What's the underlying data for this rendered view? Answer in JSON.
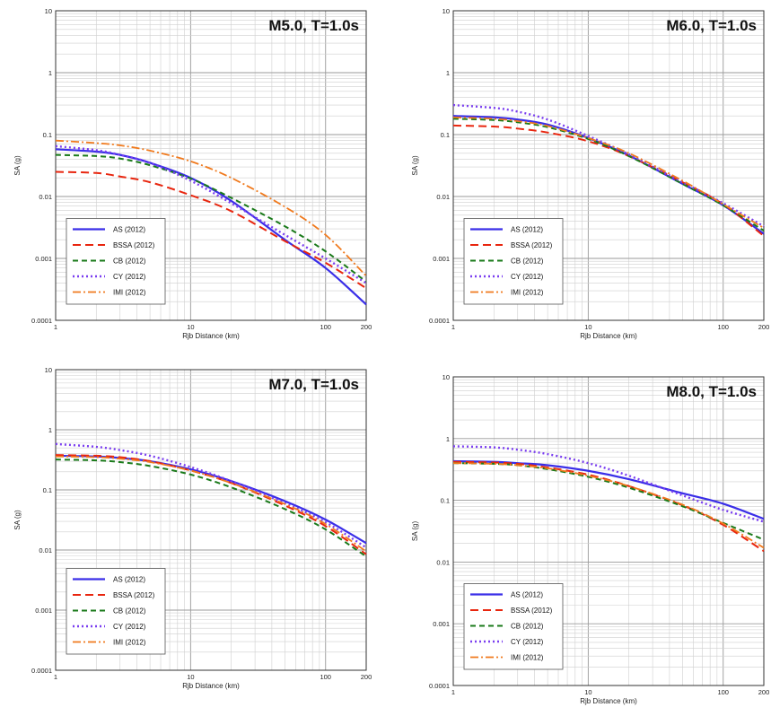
{
  "figure": {
    "background": "#ffffff"
  },
  "series_styles": {
    "AS (2012)": {
      "color": "#3a2ee8",
      "dash": "",
      "width": 2.2
    },
    "BSSA (2012)": {
      "color": "#e8260f",
      "dash": "9,5",
      "width": 2.0
    },
    "CB (2012)": {
      "color": "#1a7a1a",
      "dash": "6,4",
      "width": 2.0
    },
    "CY (2012)": {
      "color": "#7a3ef0",
      "dash": "2,3",
      "width": 2.4
    },
    "IMI (2012)": {
      "color": "#f07a1e",
      "dash": "9,3,2,3",
      "width": 1.8
    }
  },
  "chart_data": [
    {
      "type": "line",
      "title": "M5.0, T=1.0s",
      "xlabel": "Rjb Distance (km)",
      "ylabel": "SA (g)",
      "xscale": "log",
      "yscale": "log",
      "xlim": [
        1,
        200
      ],
      "ylim": [
        0.0001,
        10
      ],
      "xticks": [
        "1",
        "10",
        "100",
        "200"
      ],
      "yticks": [
        "0.0001",
        "0.001",
        "0.01",
        "0.1",
        "1",
        "10"
      ],
      "grid": true,
      "legend": "bottom-left",
      "x": [
        1,
        2,
        3,
        5,
        10,
        20,
        50,
        100,
        200
      ],
      "series": [
        {
          "name": "AS (2012)",
          "values": [
            0.058,
            0.053,
            0.047,
            0.035,
            0.02,
            0.0085,
            0.002,
            0.0007,
            0.00018
          ]
        },
        {
          "name": "BSSA (2012)",
          "values": [
            0.025,
            0.024,
            0.021,
            0.017,
            0.0105,
            0.0058,
            0.0019,
            0.00085,
            0.00033
          ]
        },
        {
          "name": "CB (2012)",
          "values": [
            0.047,
            0.045,
            0.041,
            0.032,
            0.0195,
            0.0095,
            0.0033,
            0.0013,
            0.00042
          ]
        },
        {
          "name": "CY (2012)",
          "values": [
            0.065,
            0.056,
            0.047,
            0.035,
            0.018,
            0.0078,
            0.0024,
            0.001,
            0.0004
          ]
        },
        {
          "name": "IMI (2012)",
          "values": [
            0.08,
            0.073,
            0.067,
            0.055,
            0.037,
            0.02,
            0.0068,
            0.0024,
            0.00052
          ]
        }
      ]
    },
    {
      "type": "line",
      "title": "M6.0, T=1.0s",
      "xlabel": "Rjb Distance (km)",
      "ylabel": "SA (g)",
      "xscale": "log",
      "yscale": "log",
      "xlim": [
        1,
        200
      ],
      "ylim": [
        0.0001,
        10
      ],
      "xticks": [
        "1",
        "10",
        "100",
        "200"
      ],
      "yticks": [
        "0.0001",
        "0.001",
        "0.01",
        "0.1",
        "1",
        "10"
      ],
      "grid": true,
      "legend": "bottom-left",
      "x": [
        1,
        2,
        3,
        5,
        10,
        20,
        50,
        100,
        200
      ],
      "series": [
        {
          "name": "AS (2012)",
          "values": [
            0.2,
            0.19,
            0.175,
            0.145,
            0.088,
            0.046,
            0.016,
            0.0072,
            0.0025
          ]
        },
        {
          "name": "BSSA (2012)",
          "values": [
            0.14,
            0.135,
            0.125,
            0.108,
            0.078,
            0.045,
            0.017,
            0.0075,
            0.0023
          ]
        },
        {
          "name": "CB (2012)",
          "values": [
            0.18,
            0.172,
            0.158,
            0.132,
            0.085,
            0.045,
            0.016,
            0.0072,
            0.0028
          ]
        },
        {
          "name": "CY (2012)",
          "values": [
            0.3,
            0.27,
            0.235,
            0.175,
            0.095,
            0.048,
            0.017,
            0.0078,
            0.0033
          ]
        },
        {
          "name": "IMI (2012)",
          "values": [
            0.19,
            0.18,
            0.165,
            0.138,
            0.088,
            0.05,
            0.018,
            0.0075,
            0.0031
          ]
        }
      ]
    },
    {
      "type": "line",
      "title": "M7.0, T=1.0s",
      "xlabel": "Rjb Distance (km)",
      "ylabel": "SA (g)",
      "xscale": "log",
      "yscale": "log",
      "xlim": [
        1,
        200
      ],
      "ylim": [
        0.0001,
        10
      ],
      "xticks": [
        "1",
        "10",
        "100",
        "200"
      ],
      "yticks": [
        "0.0001",
        "0.001",
        "0.01",
        "0.1",
        "1",
        "10"
      ],
      "grid": true,
      "legend": "bottom-left",
      "x": [
        1,
        2,
        3,
        5,
        10,
        20,
        50,
        100,
        200
      ],
      "series": [
        {
          "name": "AS (2012)",
          "values": [
            0.37,
            0.36,
            0.34,
            0.3,
            0.22,
            0.14,
            0.065,
            0.032,
            0.013
          ]
        },
        {
          "name": "BSSA (2012)",
          "values": [
            0.38,
            0.37,
            0.35,
            0.3,
            0.21,
            0.13,
            0.055,
            0.025,
            0.0085
          ]
        },
        {
          "name": "CB (2012)",
          "values": [
            0.32,
            0.31,
            0.29,
            0.25,
            0.18,
            0.11,
            0.048,
            0.022,
            0.0078
          ]
        },
        {
          "name": "CY (2012)",
          "values": [
            0.58,
            0.52,
            0.46,
            0.37,
            0.24,
            0.14,
            0.06,
            0.029,
            0.011
          ]
        },
        {
          "name": "IMI (2012)",
          "values": [
            0.36,
            0.35,
            0.33,
            0.29,
            0.21,
            0.13,
            0.058,
            0.027,
            0.0095
          ]
        }
      ]
    },
    {
      "type": "line",
      "title": "M8.0, T=1.0s",
      "xlabel": "Rjb Distance (km)",
      "ylabel": "SA (g)",
      "xscale": "log",
      "yscale": "log",
      "xlim": [
        1,
        200
      ],
      "ylim": [
        0.0001,
        10
      ],
      "xticks": [
        "1",
        "10",
        "100",
        "200"
      ],
      "yticks": [
        "0.0001",
        "0.001",
        "0.01",
        "0.1",
        "1",
        "10"
      ],
      "grid": true,
      "legend": "bottom-left",
      "x": [
        1,
        2,
        3,
        5,
        10,
        20,
        50,
        100,
        200
      ],
      "series": [
        {
          "name": "AS (2012)",
          "values": [
            0.43,
            0.42,
            0.4,
            0.37,
            0.3,
            0.22,
            0.13,
            0.088,
            0.05
          ]
        },
        {
          "name": "BSSA (2012)",
          "values": [
            0.42,
            0.41,
            0.39,
            0.34,
            0.26,
            0.17,
            0.083,
            0.04,
            0.015
          ]
        },
        {
          "name": "CB (2012)",
          "values": [
            0.4,
            0.39,
            0.37,
            0.32,
            0.24,
            0.16,
            0.08,
            0.043,
            0.023
          ]
        },
        {
          "name": "CY (2012)",
          "values": [
            0.75,
            0.72,
            0.66,
            0.56,
            0.4,
            0.25,
            0.12,
            0.07,
            0.045
          ]
        },
        {
          "name": "IMI (2012)",
          "values": [
            0.4,
            0.39,
            0.37,
            0.33,
            0.25,
            0.17,
            0.085,
            0.042,
            0.017
          ]
        }
      ]
    }
  ]
}
